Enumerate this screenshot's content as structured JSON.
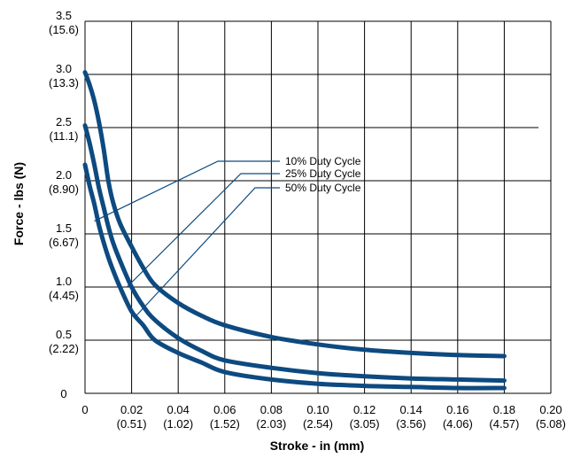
{
  "chart_data": {
    "type": "line",
    "xlabel": "Stroke - in (mm)",
    "ylabel": "Force - lbs (N)",
    "xlim": [
      0,
      0.2
    ],
    "ylim": [
      0,
      3.5
    ],
    "grid": true,
    "x_ticks": [
      {
        "value": 0,
        "label": "0",
        "sub": ""
      },
      {
        "value": 0.02,
        "label": "0.02",
        "sub": "(0.51)"
      },
      {
        "value": 0.04,
        "label": "0.04",
        "sub": "(1.02)"
      },
      {
        "value": 0.06,
        "label": "0.06",
        "sub": "(1.52)"
      },
      {
        "value": 0.08,
        "label": "0.08",
        "sub": "(2.03)"
      },
      {
        "value": 0.1,
        "label": "0.10",
        "sub": "(2.54)"
      },
      {
        "value": 0.12,
        "label": "0.12",
        "sub": "(3.05)"
      },
      {
        "value": 0.14,
        "label": "0.14",
        "sub": "(3.56)"
      },
      {
        "value": 0.16,
        "label": "0.16",
        "sub": "(4.06)"
      },
      {
        "value": 0.18,
        "label": "0.18",
        "sub": "(4.57)"
      },
      {
        "value": 0.2,
        "label": "0.20",
        "sub": "(5.08)"
      }
    ],
    "y_ticks": [
      {
        "value": 0,
        "label": "0",
        "sub": ""
      },
      {
        "value": 0.5,
        "label": "0.5",
        "sub": "(2.22)"
      },
      {
        "value": 1.0,
        "label": "1.0",
        "sub": "(4.45)"
      },
      {
        "value": 1.5,
        "label": "1.5",
        "sub": "(6.67)"
      },
      {
        "value": 2.0,
        "label": "2.0",
        "sub": "(8.90)"
      },
      {
        "value": 2.5,
        "label": "2.5",
        "sub": "(11.1)"
      },
      {
        "value": 3.0,
        "label": "3.0",
        "sub": "(13.3)"
      },
      {
        "value": 3.5,
        "label": "3.5",
        "sub": "(15.6)"
      }
    ],
    "series": [
      {
        "name": "10% Duty Cycle",
        "x": [
          0,
          0.002,
          0.004,
          0.006,
          0.008,
          0.01,
          0.012,
          0.015,
          0.02,
          0.025,
          0.03,
          0.04,
          0.05,
          0.06,
          0.08,
          0.1,
          0.12,
          0.14,
          0.16,
          0.18
        ],
        "y": [
          3.02,
          2.9,
          2.75,
          2.55,
          2.3,
          2.0,
          1.8,
          1.6,
          1.38,
          1.18,
          1.02,
          0.85,
          0.73,
          0.64,
          0.53,
          0.46,
          0.41,
          0.38,
          0.36,
          0.35
        ]
      },
      {
        "name": "25% Duty Cycle",
        "x": [
          0,
          0.002,
          0.004,
          0.006,
          0.008,
          0.01,
          0.012,
          0.015,
          0.02,
          0.025,
          0.03,
          0.04,
          0.05,
          0.06,
          0.08,
          0.1,
          0.12,
          0.14,
          0.16,
          0.18
        ],
        "y": [
          2.52,
          2.35,
          2.15,
          1.93,
          1.75,
          1.57,
          1.42,
          1.25,
          1.0,
          0.82,
          0.69,
          0.52,
          0.4,
          0.31,
          0.24,
          0.19,
          0.16,
          0.14,
          0.13,
          0.12
        ]
      },
      {
        "name": "50% Duty Cycle",
        "x": [
          0,
          0.002,
          0.004,
          0.006,
          0.008,
          0.01,
          0.012,
          0.015,
          0.02,
          0.025,
          0.03,
          0.04,
          0.05,
          0.06,
          0.08,
          0.1,
          0.12,
          0.14,
          0.16,
          0.18
        ],
        "y": [
          2.15,
          1.95,
          1.78,
          1.58,
          1.42,
          1.28,
          1.16,
          1.0,
          0.77,
          0.64,
          0.5,
          0.38,
          0.29,
          0.2,
          0.13,
          0.09,
          0.07,
          0.06,
          0.05,
          0.05
        ]
      }
    ],
    "legend_placement": "center, leader lines to curves",
    "legend_entries": [
      {
        "label": "10% Duty Cycle",
        "target_x": 0.004,
        "target_y": 1.62
      },
      {
        "label": "25% Duty Cycle",
        "target_x": 0.018,
        "target_y": 1.0
      },
      {
        "label": "50% Duty Cycle",
        "target_x": 0.022,
        "target_y": 0.73
      }
    ],
    "colors": {
      "series": "#0d4a80",
      "grid": "#000000",
      "leader": "#0d4a80"
    }
  }
}
